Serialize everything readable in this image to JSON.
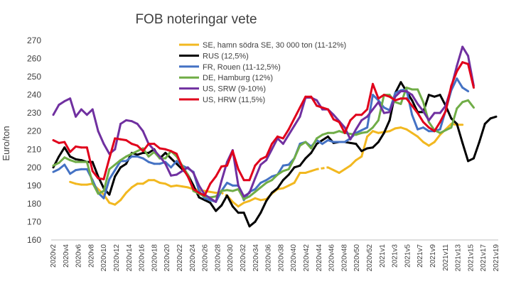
{
  "chart_data": {
    "type": "line",
    "title": "FOB noteringar vete",
    "xlabel": "",
    "ylabel": "Euro/ton",
    "ylim": [
      160,
      270
    ],
    "yticks": [
      160,
      170,
      180,
      190,
      200,
      210,
      220,
      230,
      240,
      250,
      260,
      270
    ],
    "grid": false,
    "legend_position": "top-center",
    "x_tick_labels": [
      "2020v2",
      "2020v4",
      "2020v6",
      "2020v8",
      "2020v10",
      "2020v12",
      "2020v14",
      "2020v16",
      "2020v18",
      "2020v20",
      "2020v22",
      "2020v24",
      "2020v26",
      "2020v28",
      "2020v30",
      "2020v32",
      "2020v34",
      "2020v36",
      "2020v38",
      "2020v40",
      "2020v42",
      "2020v44",
      "2020v46",
      "2020v48",
      "2020v50",
      "2020v52",
      "2021v1",
      "2021v3",
      "2021v5",
      "2021v7",
      "2021v9",
      "2021v11",
      "2021v13",
      "2021v15",
      "2021v17",
      "2021v19"
    ],
    "series": [
      {
        "name": "SE, hamn södra SE, 30 000 ton (11-12%)",
        "color": "#F2B820",
        "dashed_segments": [
          [
            30,
            31
          ],
          [
            47,
            49
          ]
        ],
        "values": [
          null,
          null,
          null,
          192,
          191,
          190.5,
          190.5,
          191,
          188,
          185,
          180.5,
          179.5,
          182,
          186,
          189,
          191,
          191,
          193,
          193,
          191.5,
          191,
          189.5,
          190,
          189.5,
          189,
          188,
          187.5,
          187,
          186.5,
          186,
          186,
          184.5,
          181,
          178.5,
          180.5,
          181.5,
          183,
          182,
          182.5,
          185.5,
          188,
          188.5,
          190,
          191.5,
          197,
          197,
          198,
          199,
          199.5,
          200,
          198.5,
          197,
          199,
          201,
          204,
          206,
          217,
          220,
          219,
          219.5,
          220,
          221.5,
          222,
          221,
          219,
          217,
          214,
          212,
          214,
          218,
          221,
          224,
          223.5,
          223.5
        ]
      },
      {
        "name": "RUS (12,5%)",
        "color": "#000000",
        "dashed_segments": [],
        "values": [
          200,
          206,
          211,
          206,
          204.5,
          204,
          203,
          203,
          195,
          188.5,
          185,
          195,
          200,
          202,
          208,
          207,
          208,
          208,
          210,
          205,
          208,
          205,
          202,
          199,
          196,
          190,
          183.5,
          182,
          180.5,
          176,
          179,
          184.5,
          178.5,
          175,
          175,
          167.5,
          170,
          175,
          181.5,
          186,
          188.5,
          193,
          196,
          200,
          201,
          205,
          208,
          213,
          215,
          217,
          213.5,
          214,
          214,
          213.5,
          213,
          209,
          210.5,
          211,
          214,
          219,
          226,
          241,
          247,
          242,
          237,
          230.5,
          230.5,
          240,
          239,
          240,
          234,
          227,
          224,
          213.5,
          203.5,
          205,
          214,
          224,
          227,
          228
        ]
      },
      {
        "name": "FR, Rouen (11-12,5%)",
        "color": "#4472C4",
        "dashed_segments": [],
        "values": [
          197.5,
          199,
          201.5,
          196.5,
          198.5,
          199,
          199,
          193,
          186,
          183,
          193.5,
          198.5,
          203.5,
          203.5,
          206,
          206,
          205,
          203,
          202,
          202,
          203,
          200,
          203.5,
          201,
          199.5,
          197.5,
          187,
          183,
          182,
          181,
          187,
          191.5,
          190,
          190,
          182,
          186.5,
          188,
          191.5,
          193,
          195,
          196,
          201,
          201.5,
          205,
          213,
          214,
          211.5,
          215,
          213,
          215,
          214,
          214,
          214,
          216,
          219,
          220.5,
          222,
          240,
          237,
          233,
          231.5,
          241,
          242.5,
          243,
          229,
          221,
          222,
          220,
          220,
          221,
          231.5,
          242.5,
          249,
          244,
          242
        ]
      },
      {
        "name": "DE, Hamburg (12%)",
        "color": "#70AD47",
        "dashed_segments": [],
        "values": [
          201,
          202.5,
          205.5,
          204,
          203,
          203,
          203,
          191.5,
          185.5,
          187,
          199,
          201.5,
          204,
          206,
          207.5,
          209,
          210.5,
          206,
          208.5,
          205,
          205,
          209,
          206,
          201,
          196,
          187,
          185.5,
          184,
          183.5,
          184,
          187,
          187.5,
          187,
          188,
          182.5,
          184,
          186.5,
          189,
          191.5,
          193,
          196,
          198,
          199,
          205,
          212,
          214,
          210.5,
          216,
          218,
          219,
          219,
          220,
          219,
          218.5,
          218,
          219,
          219.5,
          222,
          226,
          240,
          240,
          236,
          235,
          244,
          243,
          243,
          236,
          225,
          220.5,
          219,
          220.5,
          222,
          232.5,
          236,
          237,
          233
        ]
      },
      {
        "name": "US, SRW (9-10%)",
        "color": "#7030A0",
        "dashed_segments": [],
        "values": [
          229,
          234.5,
          236.5,
          238,
          228,
          232,
          229,
          232,
          220,
          213,
          207.5,
          210,
          224,
          226,
          225.5,
          224,
          220,
          213,
          209.5,
          206,
          202,
          195.5,
          196,
          198,
          200,
          197,
          190,
          185,
          183,
          181,
          192.5,
          203,
          209.5,
          190,
          184,
          186,
          194,
          201.5,
          204,
          210,
          216,
          213,
          218,
          223,
          228,
          238.5,
          238.5,
          237,
          232,
          232,
          229,
          225.5,
          222,
          215.5,
          221,
          226,
          228,
          232,
          236,
          230,
          230.5,
          239,
          242,
          242,
          240,
          235,
          231,
          226,
          230,
          230,
          234,
          244,
          256,
          266.5,
          261.5,
          245
        ]
      },
      {
        "name": "US, HRW (11,5%)",
        "color": "#E0001B",
        "dashed_segments": [],
        "values": [
          215,
          213.5,
          214,
          208.5,
          211.5,
          211,
          211,
          198,
          194,
          193.5,
          205,
          216,
          215.5,
          215,
          213,
          212,
          209,
          213,
          213,
          210.5,
          210,
          209,
          207.5,
          200,
          195,
          188,
          186,
          184.5,
          191,
          195,
          200.5,
          201,
          209,
          199,
          193,
          193,
          201,
          204.5,
          206,
          213,
          217,
          216,
          221,
          227,
          233,
          239,
          239,
          234,
          233,
          232,
          226.5,
          225,
          219,
          226,
          229,
          229,
          232,
          246,
          238,
          240,
          239,
          237,
          238,
          238,
          234,
          230,
          225,
          222,
          220,
          225,
          231,
          245,
          253,
          258,
          257,
          244
        ]
      }
    ]
  }
}
